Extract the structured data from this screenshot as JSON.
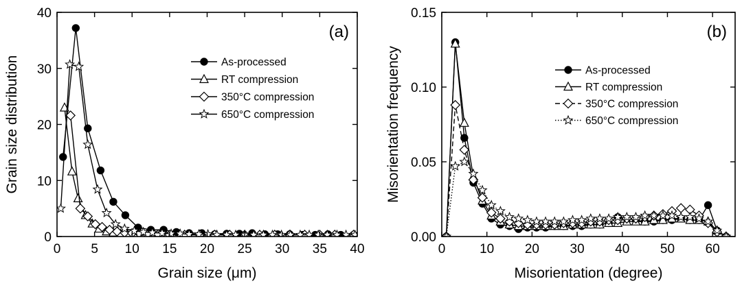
{
  "chart_data": [
    {
      "type": "line",
      "panel_label": "(a)",
      "xlabel": "Grain size (μm)",
      "ylabel": "Grain size distribution",
      "xlim": [
        0,
        40
      ],
      "ylim": [
        0,
        40
      ],
      "x_ticks": [
        0,
        5,
        10,
        15,
        20,
        25,
        30,
        35,
        40
      ],
      "y_ticks": [
        0,
        10,
        20,
        30,
        40
      ],
      "x_tick_labels": [
        "0",
        "5",
        "10",
        "15",
        "20",
        "25",
        "30",
        "35",
        "40"
      ],
      "y_tick_labels": [
        "0",
        "10",
        "20",
        "30",
        "40"
      ],
      "grid": false,
      "legend_position": "top-right",
      "series": [
        {
          "name": "As-processed",
          "marker": "circle-filled",
          "dash": "solid",
          "x": [
            0.8,
            2.5,
            4.1,
            5.8,
            7.5,
            9.1,
            10.8,
            12.5,
            14.2,
            15.9,
            17.6,
            19.3,
            21,
            22.6,
            24.3,
            26,
            27.7,
            29.4,
            31,
            32.7,
            34.4,
            36.1,
            37.8,
            39.5
          ],
          "y": [
            14.2,
            37.2,
            19.3,
            11.8,
            6.2,
            3.8,
            1.6,
            1.2,
            1.2,
            0.8,
            0.6,
            0.6,
            0.4,
            0.5,
            0.5,
            0.6,
            0.4,
            0.4,
            0.4,
            0.3,
            0.3,
            0.4,
            0.3,
            0.3
          ]
        },
        {
          "name": "RT compression",
          "marker": "triangle-open",
          "dash": "solid",
          "x": [
            1.0,
            2.0,
            2.8,
            3.8,
            4.7,
            5.6,
            6.6,
            7.5,
            8.5,
            9.4,
            10.4,
            11.5,
            13,
            15,
            17,
            19,
            21,
            23,
            25,
            27,
            29,
            31,
            33,
            35,
            37,
            39.5
          ],
          "y": [
            23,
            11.6,
            6.8,
            3.8,
            2.3,
            1.4,
            0.9,
            0.7,
            0.5,
            0.4,
            0.4,
            0.3,
            0.3,
            0.3,
            0.3,
            0.3,
            0.3,
            0.3,
            0.3,
            0.3,
            0.3,
            0.3,
            0.3,
            0.3,
            0.3,
            0.3
          ]
        },
        {
          "name": "350°C compression",
          "marker": "diamond-open",
          "dash": "solid",
          "x": [
            1.8,
            3.1,
            4.1,
            5.1,
            6.0,
            7.0,
            8.0,
            9.0,
            10,
            11,
            12,
            13.5,
            15,
            17,
            19,
            21,
            23,
            25,
            27,
            29,
            31,
            33,
            35,
            37,
            39.5
          ],
          "y": [
            21.6,
            5.0,
            3.6,
            2.2,
            1.7,
            1.2,
            0.9,
            0.7,
            0.6,
            0.5,
            0.4,
            0.4,
            0.3,
            0.3,
            0.3,
            0.3,
            0.3,
            0.3,
            0.3,
            0.3,
            0.3,
            0.3,
            0.3,
            0.3,
            0.3
          ]
        },
        {
          "name": "650°C compression",
          "marker": "star-open",
          "dash": "solid",
          "x": [
            0.5,
            1.7,
            2.9,
            4.1,
            5.4,
            6.6,
            7.8,
            9.0,
            10.3,
            11.5,
            12.7,
            14,
            15.2,
            16.4,
            17.6,
            18.9,
            20.1,
            21.3,
            22.6,
            23.8,
            25,
            26.2,
            27.5,
            28.7,
            29.9,
            31.1,
            32.4,
            33.6,
            34.8,
            36,
            37.3,
            38.5,
            39.7
          ],
          "y": [
            5.0,
            30.7,
            30.3,
            16.4,
            8.4,
            4.2,
            2.2,
            1.4,
            1.0,
            0.8,
            0.7,
            0.6,
            0.5,
            0.5,
            0.4,
            0.4,
            0.4,
            0.3,
            0.3,
            0.3,
            0.3,
            0.3,
            0.3,
            0.3,
            0.3,
            0.3,
            0.3,
            0.3,
            0.3,
            0.3,
            0.3,
            0.3,
            0.3
          ]
        }
      ]
    },
    {
      "type": "line",
      "panel_label": "(b)",
      "xlabel": "Misorientation (degree)",
      "ylabel": "Misorientation frequency",
      "xlim": [
        0,
        65
      ],
      "ylim": [
        0,
        0.15
      ],
      "x_ticks": [
        0,
        10,
        20,
        30,
        40,
        50,
        60
      ],
      "y_ticks": [
        0,
        0.05,
        0.1,
        0.15
      ],
      "x_tick_labels": [
        "0",
        "10",
        "20",
        "30",
        "40",
        "50",
        "60"
      ],
      "y_tick_labels": [
        "0.00",
        "0.05",
        "0.10",
        "0.15"
      ],
      "grid": false,
      "legend_position": "top-right",
      "series": [
        {
          "name": "As-processed",
          "marker": "circle-filled",
          "dash": "solid",
          "x": [
            1,
            3,
            5,
            7,
            9,
            11,
            13,
            15,
            17,
            19,
            21,
            23,
            25,
            27,
            29,
            31,
            33,
            35,
            37,
            39,
            41,
            43,
            45,
            47,
            49,
            51,
            53,
            55,
            57,
            59,
            61,
            63
          ],
          "y": [
            0.0,
            0.13,
            0.066,
            0.036,
            0.022,
            0.012,
            0.008,
            0.007,
            0.005,
            0.006,
            0.006,
            0.006,
            0.007,
            0.007,
            0.007,
            0.007,
            0.008,
            0.008,
            0.009,
            0.013,
            0.012,
            0.011,
            0.01,
            0.01,
            0.011,
            0.011,
            0.012,
            0.011,
            0.011,
            0.021,
            0.004,
            0.0
          ]
        },
        {
          "name": "RT compression",
          "marker": "triangle-open",
          "dash": "solid",
          "x": [
            1,
            3,
            5,
            7,
            9,
            11,
            13,
            15,
            17,
            19,
            21,
            23,
            25,
            27,
            29,
            31,
            33,
            35,
            37,
            39,
            41,
            43,
            45,
            47,
            49,
            51,
            53,
            55,
            57,
            59,
            61,
            63
          ],
          "y": [
            0.0,
            0.129,
            0.076,
            0.04,
            0.024,
            0.014,
            0.01,
            0.008,
            0.007,
            0.007,
            0.007,
            0.007,
            0.007,
            0.007,
            0.008,
            0.008,
            0.008,
            0.008,
            0.009,
            0.009,
            0.01,
            0.01,
            0.01,
            0.011,
            0.011,
            0.012,
            0.012,
            0.011,
            0.011,
            0.01,
            0.004,
            0.0
          ]
        },
        {
          "name": "350°C compression",
          "marker": "diamond-open",
          "dash": "dashed",
          "x": [
            1,
            3,
            5,
            7,
            9,
            11,
            13,
            15,
            17,
            19,
            21,
            23,
            25,
            27,
            29,
            31,
            33,
            35,
            37,
            39,
            41,
            43,
            45,
            47,
            49,
            51,
            53,
            55,
            57,
            59,
            61,
            63
          ],
          "y": [
            0.0,
            0.088,
            0.058,
            0.038,
            0.026,
            0.016,
            0.012,
            0.01,
            0.009,
            0.008,
            0.008,
            0.008,
            0.008,
            0.009,
            0.009,
            0.009,
            0.01,
            0.01,
            0.011,
            0.011,
            0.012,
            0.012,
            0.013,
            0.014,
            0.015,
            0.017,
            0.019,
            0.018,
            0.014,
            0.009,
            0.003,
            0.0
          ]
        },
        {
          "name": "650°C compression",
          "marker": "star-open",
          "dash": "dotted",
          "x": [
            1,
            3,
            5,
            7,
            9,
            11,
            13,
            15,
            17,
            19,
            21,
            23,
            25,
            27,
            29,
            31,
            33,
            35,
            37,
            39,
            41,
            43,
            45,
            47,
            49,
            51,
            53,
            55,
            57,
            59,
            61,
            63
          ],
          "y": [
            0.0,
            0.047,
            0.05,
            0.042,
            0.031,
            0.021,
            0.017,
            0.013,
            0.012,
            0.011,
            0.01,
            0.01,
            0.01,
            0.01,
            0.011,
            0.011,
            0.012,
            0.012,
            0.012,
            0.013,
            0.013,
            0.013,
            0.014,
            0.014,
            0.014,
            0.014,
            0.013,
            0.013,
            0.012,
            0.01,
            0.004,
            0.0
          ]
        }
      ]
    }
  ]
}
